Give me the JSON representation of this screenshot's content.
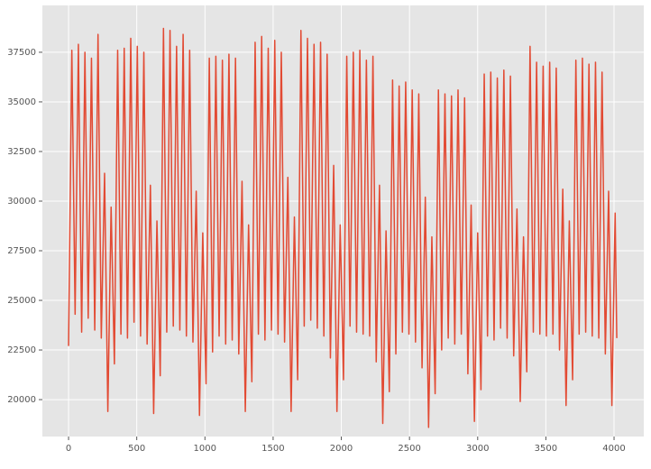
{
  "chart_data": {
    "type": "line",
    "color": "#E24A33",
    "grid": true,
    "xlim": [
      -192,
      4218
    ],
    "ylim": [
      18140,
      39860
    ],
    "xticks": [
      0,
      500,
      1000,
      1500,
      2000,
      2500,
      3000,
      3500,
      4000
    ],
    "yticks": [
      20000,
      22500,
      25000,
      27500,
      30000,
      32500,
      35000,
      37500
    ],
    "x": [
      0,
      24,
      48,
      72,
      96,
      120,
      144,
      168,
      192,
      216,
      240,
      264,
      288,
      312,
      336,
      360,
      384,
      408,
      432,
      456,
      480,
      504,
      528,
      552,
      576,
      600,
      624,
      648,
      672,
      696,
      720,
      744,
      768,
      792,
      816,
      840,
      864,
      888,
      912,
      936,
      960,
      984,
      1008,
      1032,
      1056,
      1080,
      1104,
      1128,
      1152,
      1176,
      1200,
      1224,
      1248,
      1272,
      1296,
      1320,
      1344,
      1368,
      1392,
      1416,
      1440,
      1464,
      1488,
      1512,
      1536,
      1560,
      1584,
      1608,
      1632,
      1656,
      1680,
      1704,
      1728,
      1752,
      1776,
      1800,
      1824,
      1848,
      1872,
      1896,
      1920,
      1944,
      1968,
      1992,
      2016,
      2040,
      2064,
      2088,
      2112,
      2136,
      2160,
      2184,
      2208,
      2232,
      2256,
      2280,
      2304,
      2328,
      2352,
      2376,
      2400,
      2424,
      2448,
      2472,
      2496,
      2520,
      2544,
      2568,
      2592,
      2616,
      2640,
      2664,
      2688,
      2712,
      2736,
      2760,
      2784,
      2808,
      2832,
      2856,
      2880,
      2904,
      2928,
      2952,
      2976,
      3000,
      3024,
      3048,
      3072,
      3096,
      3120,
      3144,
      3168,
      3192,
      3216,
      3240,
      3264,
      3288,
      3312,
      3336,
      3360,
      3384,
      3408,
      3432,
      3456,
      3480,
      3504,
      3528,
      3552,
      3576,
      3600,
      3624,
      3648,
      3672,
      3696,
      3720,
      3744,
      3768,
      3792,
      3816,
      3840,
      3864,
      3888,
      3912,
      3936,
      3960,
      3984,
      4008,
      4020
    ],
    "values": [
      22700,
      37600,
      24300,
      37900,
      23400,
      37500,
      24100,
      37200,
      23500,
      38400,
      23100,
      31400,
      19400,
      29700,
      21800,
      37600,
      23300,
      37700,
      23100,
      38200,
      23900,
      37800,
      23200,
      37500,
      22800,
      30800,
      19300,
      29000,
      21200,
      38700,
      23400,
      38600,
      23700,
      37800,
      23500,
      38400,
      23200,
      37600,
      22900,
      30500,
      19200,
      28400,
      20800,
      37200,
      22400,
      37300,
      23200,
      37100,
      22800,
      37400,
      23000,
      37200,
      22300,
      31000,
      19400,
      28800,
      20900,
      38000,
      23300,
      38300,
      23000,
      37700,
      23500,
      38100,
      23300,
      37500,
      22900,
      31200,
      19400,
      29200,
      21000,
      38600,
      23700,
      38200,
      24000,
      37900,
      23600,
      38000,
      23200,
      37400,
      22100,
      31800,
      19400,
      28800,
      21000,
      37300,
      23700,
      37500,
      23400,
      37600,
      23300,
      37100,
      23200,
      37300,
      21900,
      30800,
      18800,
      28500,
      20400,
      36100,
      22300,
      35800,
      23400,
      36000,
      23300,
      35600,
      22900,
      35400,
      21600,
      30200,
      18600,
      28200,
      20300,
      35600,
      22500,
      35400,
      23100,
      35300,
      22800,
      35600,
      23300,
      35200,
      21300,
      29800,
      18900,
      28400,
      20500,
      36400,
      23200,
      36500,
      23000,
      36200,
      23600,
      36600,
      23100,
      36300,
      22200,
      29600,
      19900,
      28200,
      21400,
      37800,
      23400,
      37000,
      23300,
      36800,
      23200,
      37000,
      23300,
      36700,
      22500,
      30600,
      19700,
      29000,
      21000,
      37100,
      23300,
      37200,
      23400,
      36900,
      23200,
      37000,
      23100,
      36500,
      22300,
      30500,
      19700,
      29400,
      23100
    ]
  }
}
